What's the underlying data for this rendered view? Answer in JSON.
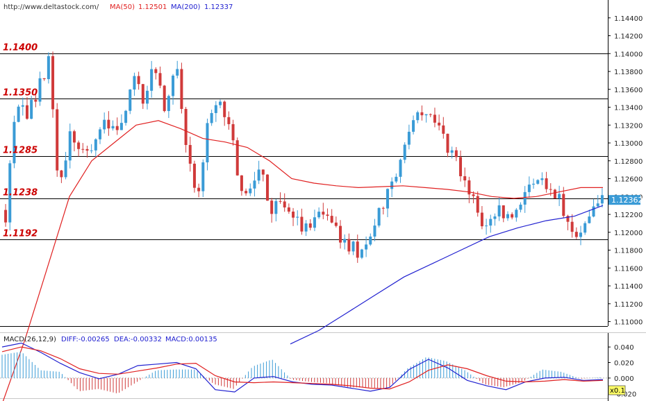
{
  "header": {
    "url": "http://www.deltastock.com/",
    "ma50_label": "MA(50)",
    "ma50_value": "1.12501",
    "ma200_label": "MA(200)",
    "ma200_value": "1.12337"
  },
  "price_axis": {
    "ticks": [
      "1.14400",
      "1.14200",
      "1.14000",
      "1.13800",
      "1.13600",
      "1.13400",
      "1.13200",
      "1.13000",
      "1.12800",
      "1.12600",
      "1.12400",
      "1.12200",
      "1.12000",
      "1.11800",
      "1.11600",
      "1.11400",
      "1.11200",
      "1.11000"
    ],
    "current_price": "1.12362"
  },
  "levels": [
    {
      "label": "1.1400",
      "value": 1.14
    },
    {
      "label": "1.1350",
      "value": 1.135
    },
    {
      "label": "1.1285",
      "value": 1.1285
    },
    {
      "label": "1.1238",
      "value": 1.1238
    },
    {
      "label": "1.1192",
      "value": 1.1192
    }
  ],
  "macd": {
    "title": "MACD(26,12,9)",
    "diff": "DIFF:-0.00265",
    "dea": "DEA:-0.00332",
    "macd": "MACD:0.00135",
    "ticks": [
      "0.040",
      "0.020",
      "0.000",
      "-0.020"
    ]
  },
  "zoom_badge": "x0.1",
  "colors": {
    "bull": "#3a9bd6",
    "bear": "#d03a3a",
    "ma50": "#e02020",
    "ma200": "#2020d0",
    "level_text": "#cc0000",
    "diff": "#2020d0",
    "dea": "#e02020"
  },
  "chart_data": {
    "type": "candlestick",
    "price_range": [
      1.1095,
      1.146
    ],
    "macd_range": [
      -0.026,
      0.058
    ],
    "anchors": [
      1.122,
      1.135,
      1.133,
      1.1355,
      1.1395,
      1.125,
      1.131,
      1.129,
      1.1295,
      1.1325,
      1.131,
      1.133,
      1.1375,
      1.135,
      1.1385,
      1.134,
      1.139,
      1.1295,
      1.123,
      1.132,
      1.135,
      1.1325,
      1.125,
      1.1245,
      1.127,
      1.1225,
      1.124,
      1.122,
      1.12,
      1.121,
      1.1225,
      1.12,
      1.119,
      1.1178,
      1.1195,
      1.1222,
      1.125,
      1.128,
      1.1315,
      1.134,
      1.1325,
      1.131,
      1.1285,
      1.1258,
      1.123,
      1.121,
      1.1225,
      1.1215,
      1.1225,
      1.1245,
      1.1265,
      1.1245,
      1.1235,
      1.121,
      1.1195,
      1.123,
      1.1236
    ],
    "ma50": [
      1.101,
      1.108,
      1.116,
      1.124,
      1.128,
      1.13,
      1.132,
      1.1325,
      1.1316,
      1.1305,
      1.1301,
      1.1295,
      1.128,
      1.126,
      1.1255,
      1.1252,
      1.125,
      1.1251,
      1.1252,
      1.125,
      1.1248,
      1.1245,
      1.124,
      1.1238,
      1.124,
      1.1245,
      1.125,
      1.125
    ],
    "ma200": [
      1.1075,
      1.109,
      1.111,
      1.113,
      1.115,
      1.1165,
      1.118,
      1.1195,
      1.1205,
      1.1213,
      1.1218,
      1.123
    ],
    "diff": [
      0.04,
      0.045,
      0.033,
      0.019,
      0.007,
      -0.001,
      0.005,
      0.016,
      0.018,
      0.02,
      0.012,
      -0.015,
      -0.018,
      0.0,
      0.002,
      -0.005,
      -0.008,
      -0.009,
      -0.013,
      -0.017,
      -0.012,
      0.011,
      0.024,
      0.013,
      -0.003,
      -0.01,
      -0.015,
      -0.005,
      0.0,
      0.001,
      -0.003,
      -0.002
    ],
    "dea": [
      0.034,
      0.04,
      0.035,
      0.025,
      0.012,
      0.006,
      0.005,
      0.009,
      0.013,
      0.018,
      0.019,
      0.003,
      -0.005,
      -0.006,
      -0.005,
      -0.006,
      -0.007,
      -0.008,
      -0.01,
      -0.013,
      -0.014,
      -0.005,
      0.01,
      0.017,
      0.012,
      0.003,
      -0.004,
      -0.005,
      -0.004,
      -0.002,
      -0.004,
      -0.003
    ],
    "hist": [
      0.03,
      0.034,
      0.01,
      0.008,
      -0.017,
      -0.014,
      -0.02,
      -0.005,
      0.01,
      0.011,
      0.011,
      -0.008,
      -0.014,
      0.015,
      0.024,
      -0.002,
      -0.005,
      -0.007,
      -0.012,
      -0.012,
      -0.014,
      0.012,
      0.027,
      0.022,
      0.01,
      -0.008,
      -0.012,
      -0.005,
      0.011,
      0.008,
      -0.001,
      0.001
    ]
  }
}
